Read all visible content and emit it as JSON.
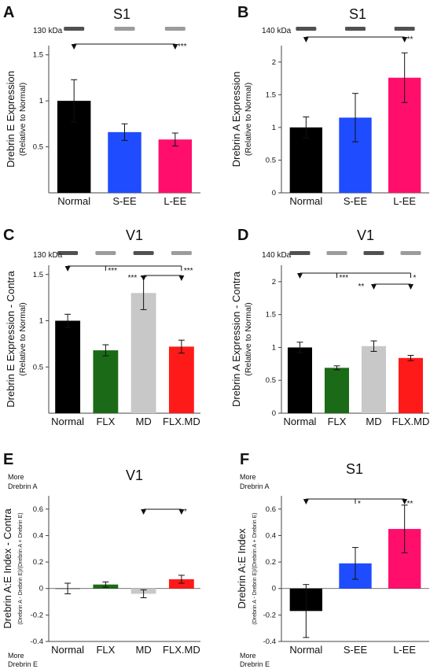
{
  "chart_data": [
    {
      "panel": "A",
      "title": "S1",
      "type": "bar",
      "blot_label": "130 kDa",
      "ylabel": "Drebrin E Expression",
      "ylabel_sub": "(Relative to Normal)",
      "categories": [
        "Normal",
        "S-EE",
        "L-EE"
      ],
      "values": [
        1.0,
        0.66,
        0.58
      ],
      "errors": [
        0.23,
        0.09,
        0.07
      ],
      "colors": [
        "#000000",
        "#1f4cff",
        "#ff0f6b"
      ],
      "ylim": [
        0,
        1.6
      ],
      "ticks": [
        0.5,
        1,
        1.5
      ],
      "tick_labels": [
        "0.5",
        "1",
        "1.5"
      ],
      "significance": [
        {
          "from": 0,
          "to": 2,
          "label": "***"
        }
      ]
    },
    {
      "panel": "B",
      "title": "S1",
      "type": "bar",
      "blot_label": "140 kDa",
      "ylabel": "Drebrin A Expression",
      "ylabel_sub": "(Relative to Normal)",
      "categories": [
        "Normal",
        "S-EE",
        "L-EE"
      ],
      "values": [
        1.0,
        1.15,
        1.76
      ],
      "errors": [
        0.16,
        0.37,
        0.38
      ],
      "colors": [
        "#000000",
        "#1f4cff",
        "#ff0f6b"
      ],
      "ylim": [
        0,
        2.25
      ],
      "ticks": [
        0,
        0.5,
        1,
        1.5,
        2
      ],
      "tick_labels": [
        "0",
        "0.5",
        "1",
        "1.5",
        "2"
      ],
      "significance": [
        {
          "from": 0,
          "to": 2,
          "label": "**"
        }
      ]
    },
    {
      "panel": "C",
      "title": "V1",
      "type": "bar",
      "blot_label": "130 kDa",
      "ylabel": "Drebrin E Expression - Contra",
      "ylabel_sub": "(Relative to Normal)",
      "categories": [
        "Normal",
        "FLX",
        "MD",
        "FLX.MD"
      ],
      "values": [
        1.0,
        0.68,
        1.3,
        0.72
      ],
      "errors": [
        0.07,
        0.06,
        0.18,
        0.07
      ],
      "colors": [
        "#000000",
        "#1b6a17",
        "#c8c8c8",
        "#ff1a1a"
      ],
      "ylim": [
        0,
        1.6
      ],
      "ticks": [
        0.5,
        1,
        1.5
      ],
      "tick_labels": [
        "0.5",
        "1",
        "1.5"
      ],
      "significance": [
        {
          "from": 0,
          "to": 3,
          "label": "***",
          "mid": 1,
          "level": 1
        },
        {
          "from": 2,
          "to": 3,
          "label": "***",
          "level": 2
        }
      ],
      "sig_end_label": "***"
    },
    {
      "panel": "D",
      "title": "V1",
      "type": "bar",
      "blot_label": "140 kDa",
      "ylabel": "Drebrin A Expression - Contra",
      "ylabel_sub": "(Relative to Normal)",
      "categories": [
        "Normal",
        "FLX",
        "MD",
        "FLX.MD"
      ],
      "values": [
        1.0,
        0.69,
        1.02,
        0.84
      ],
      "errors": [
        0.08,
        0.03,
        0.08,
        0.04
      ],
      "colors": [
        "#000000",
        "#1b6a17",
        "#c8c8c8",
        "#ff1a1a"
      ],
      "ylim": [
        0,
        2.25
      ],
      "ticks": [
        0,
        0.5,
        1,
        1.5,
        2
      ],
      "tick_labels": [
        "0",
        "0.5",
        "1",
        "1.5",
        "2"
      ],
      "significance": [
        {
          "from": 0,
          "to": 3,
          "label": "***",
          "mid": 1,
          "level": 1
        },
        {
          "from": 2,
          "to": 3,
          "label": "**",
          "level": 2
        }
      ],
      "sig_end_label": "*"
    },
    {
      "panel": "E",
      "title": "V1",
      "type": "bar",
      "ylabel": "Drebrin A:E Index - Contra",
      "ylabel_sub": "(Drebrin A - Drebrin E)/(Drebrin A + Drebrin E)",
      "top_note": [
        "More",
        "Drebrin A"
      ],
      "bottom_note": [
        "More",
        "Drebrin E"
      ],
      "categories": [
        "Normal",
        "FLX",
        "MD",
        "FLX.MD"
      ],
      "values": [
        0.0,
        0.03,
        -0.04,
        0.07
      ],
      "errors": [
        0.04,
        0.02,
        0.03,
        0.03
      ],
      "colors": [
        "#000000",
        "#1b6a17",
        "#c8c8c8",
        "#ff1a1a"
      ],
      "ylim": [
        -0.4,
        0.7
      ],
      "ticks": [
        -0.4,
        -0.2,
        0,
        0.2,
        0.4,
        0.6
      ],
      "tick_labels": [
        "-0.4",
        "-0.2",
        "0",
        "0.2",
        "0.4",
        "0.6"
      ],
      "significance": [
        {
          "from": 2,
          "to": 3,
          "label": "*"
        }
      ]
    },
    {
      "panel": "F",
      "title": "S1",
      "type": "bar",
      "ylabel": "Drebrin A:E Index",
      "ylabel_sub": "(Drebrin A - Drebrin E)/(Drebrin A + Drebrin E)",
      "top_note": [
        "More",
        "Drebrin A"
      ],
      "bottom_note": [
        "More",
        "Drebrin E"
      ],
      "categories": [
        "Normal",
        "S-EE",
        "L-EE"
      ],
      "values": [
        -0.17,
        0.19,
        0.45
      ],
      "errors": [
        0.2,
        0.12,
        0.18
      ],
      "colors": [
        "#000000",
        "#1f4cff",
        "#ff0f6b"
      ],
      "ylim": [
        -0.4,
        0.7
      ],
      "ticks": [
        -0.4,
        -0.2,
        0,
        0.2,
        0.4,
        0.6
      ],
      "tick_labels": [
        "-0.4",
        "-0.2",
        "0",
        "0.2",
        "0.4",
        "0.6"
      ],
      "significance": [
        {
          "from": 0,
          "to": 2,
          "label": "**",
          "mid": 1,
          "mid_label": "*"
        }
      ]
    }
  ]
}
